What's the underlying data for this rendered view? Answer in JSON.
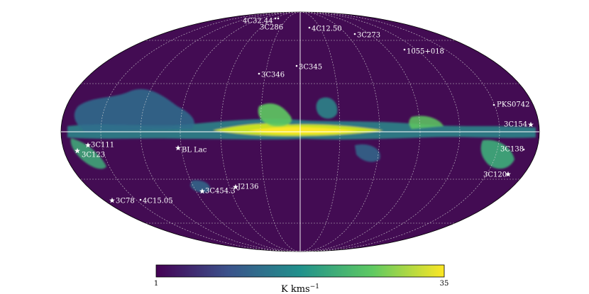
{
  "map": {
    "projection": "mollweide",
    "background_color": "#430c53",
    "colormap": "viridis",
    "graticule": "dashed",
    "sources": [
      {
        "label": "4C32.44",
        "marker": "dot"
      },
      {
        "label": "3C286",
        "marker": "dot"
      },
      {
        "label": "4C12.50",
        "marker": "dot"
      },
      {
        "label": "3C273",
        "marker": "dot"
      },
      {
        "label": "1055+018",
        "marker": "dot"
      },
      {
        "label": "3C345",
        "marker": "dot"
      },
      {
        "label": "3C346",
        "marker": "dot"
      },
      {
        "label": "PKS0742",
        "marker": "dot"
      },
      {
        "label": "3C154",
        "marker": "star"
      },
      {
        "label": "3C111",
        "marker": "star"
      },
      {
        "label": "3C123",
        "marker": "star"
      },
      {
        "label": "BL Lac",
        "marker": "star"
      },
      {
        "label": "3C138",
        "marker": "dot"
      },
      {
        "label": "3C120",
        "marker": "star"
      },
      {
        "label": "J2136",
        "marker": "star"
      },
      {
        "label": "3C454.3",
        "marker": "star"
      },
      {
        "label": "3C78",
        "marker": "star"
      },
      {
        "label": "4C15.05",
        "marker": "dot"
      }
    ]
  },
  "colorbar": {
    "min_label": "1",
    "max_label": "35",
    "label": "K kms",
    "label_exponent": "−1",
    "colors": [
      "#440154",
      "#3b528b",
      "#21918c",
      "#5ec962",
      "#fde725"
    ]
  }
}
